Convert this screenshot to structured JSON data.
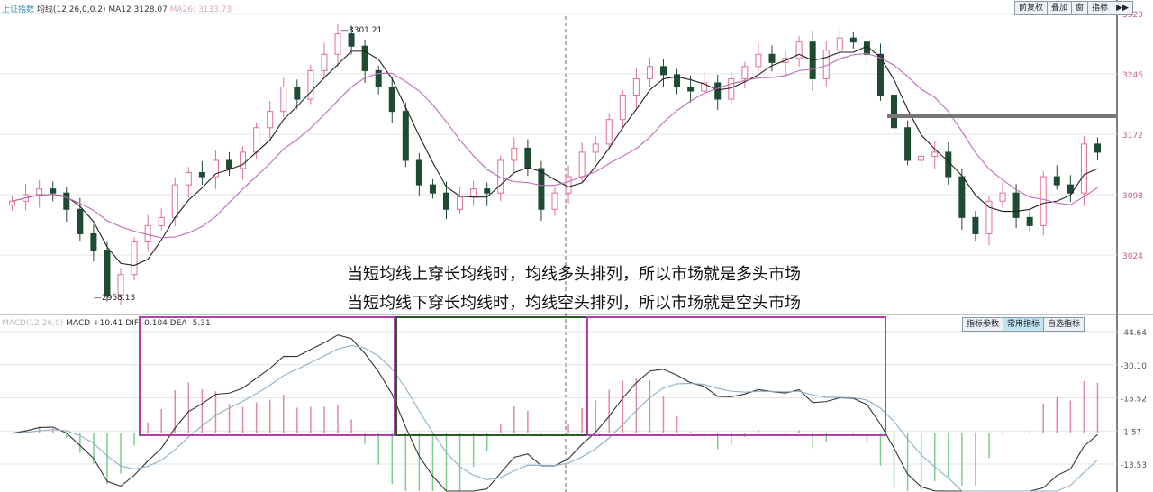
{
  "header": {
    "index_name": "上证指数",
    "indicator": "均线(12,26,0,0.2)",
    "ma_label": "MA12",
    "ma_value": "3128.07",
    "extra": "MA26: 3133.73"
  },
  "toolbar": {
    "buttons": [
      "前复权",
      "叠加",
      "窗",
      "指标",
      "▶▶"
    ]
  },
  "macd_header": {
    "name": "MACD(12,26,9)",
    "macd": "MACD +10.41",
    "dif": "DIF -0.104",
    "dea": "DEA -5.31"
  },
  "macd_buttons": [
    "指标参数",
    "常用指标",
    "自选指标"
  ],
  "annotations": {
    "line1": "当短均线上穿长均线时，均线多头排列，所以市场就是多头市场",
    "line2": "当短均线下穿长均线时，均线空头排列，所以市场就是空头市场",
    "high_label": "3301.21",
    "low_label": "2958.13"
  },
  "colors": {
    "up": "#e0708f",
    "down": "#1f4a33",
    "ma_short": "#222222",
    "ma_long": "#c06ab8",
    "box_magenta": "#b040b0",
    "box_green": "#2a5a2a",
    "hist_up": "#e08a9a",
    "hist_down": "#7ccf8a"
  },
  "chart_data": [
    {
      "type": "candlestick",
      "title": "",
      "series_ma": [
        "MA12",
        "MA26"
      ],
      "close": [
        3090,
        3098,
        3105,
        3100,
        3080,
        3050,
        3030,
        2975,
        3000,
        3040,
        3060,
        3070,
        3110,
        3125,
        3120,
        3140,
        3130,
        3150,
        3180,
        3200,
        3230,
        3215,
        3250,
        3270,
        3295,
        3280,
        3250,
        3230,
        3200,
        3140,
        3110,
        3100,
        3080,
        3095,
        3105,
        3100,
        3140,
        3155,
        3130,
        3080,
        3100,
        3120,
        3150,
        3160,
        3190,
        3220,
        3240,
        3255,
        3245,
        3230,
        3225,
        3235,
        3215,
        3240,
        3255,
        3270,
        3260,
        3265,
        3285,
        3240,
        3275,
        3290,
        3285,
        3270,
        3220,
        3180,
        3140,
        3145,
        3150,
        3120,
        3070,
        3050,
        3090,
        3100,
        3070,
        3060,
        3120,
        3110,
        3100,
        3160,
        3150
      ],
      "yticks": [
        "3320",
        "3246",
        "3172",
        "3098",
        "3024"
      ],
      "ylim": [
        3024,
        3320
      ],
      "grid": true
    },
    {
      "type": "bar+line",
      "title": "MACD",
      "yticks": [
        "44.64",
        "30.10",
        "15.52",
        "1.57",
        "-13.53"
      ],
      "ylim": [
        -13.53,
        44.64
      ]
    }
  ]
}
